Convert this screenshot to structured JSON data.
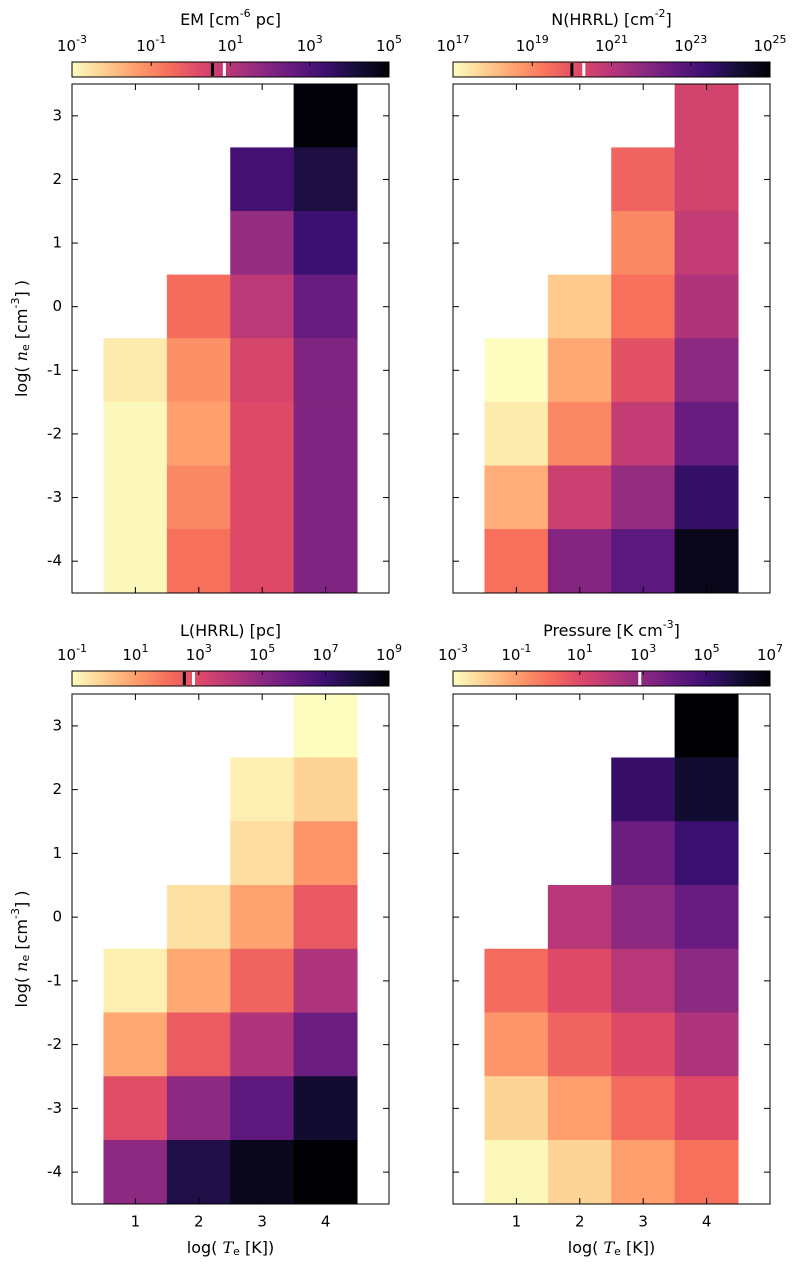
{
  "colormap": [
    "#fcfdbf",
    "#fecf92",
    "#fe9f6d",
    "#f7705c",
    "#de4968",
    "#b73779",
    "#8c2981",
    "#641a80",
    "#3b0f70",
    "#140e36",
    "#000004"
  ],
  "chart_data": [
    {
      "type": "heatmap",
      "title": [
        {
          "text": "EM [cm"
        },
        {
          "sup": "-6"
        },
        {
          "text": " pc]"
        }
      ],
      "x": [
        1,
        2,
        3,
        4
      ],
      "y": [
        3,
        2,
        1,
        0,
        -1,
        -2,
        -3,
        -4
      ],
      "values": [
        [
          null,
          null,
          null,
          83000
        ],
        [
          null,
          null,
          1700,
          11000
        ],
        [
          null,
          null,
          44,
          2500
        ],
        [
          null,
          0.3,
          8,
          330
        ],
        [
          0.0021,
          0.07,
          2.3,
          110
        ],
        [
          0.0012,
          0.04,
          1.6,
          110
        ],
        [
          0.0012,
          0.1,
          1.6,
          110
        ],
        [
          0.0012,
          0.25,
          1.6,
          110
        ]
      ],
      "xlim": [
        0,
        5
      ],
      "ylim": [
        -4.5,
        3.5
      ],
      "xticks": [
        1,
        2,
        3,
        4
      ],
      "yticks": [
        -4,
        -3,
        -2,
        -1,
        0,
        1,
        2,
        3
      ],
      "ylabel": [
        {
          "text": "log( "
        },
        {
          "italic": "n"
        },
        {
          "sub": "e"
        },
        {
          "text": " [cm"
        },
        {
          "sup": "-3"
        },
        {
          "text": "] )"
        }
      ],
      "show_xticklabels": false,
      "show_yticklabels": true,
      "colorbar": {
        "log": true,
        "lim": [
          0.001,
          100000
        ],
        "ticks": [
          {
            "value": 0.001,
            "base": "10",
            "exponent": "-3"
          },
          {
            "value": 0.1,
            "base": "10",
            "exponent": "-1"
          },
          {
            "value": 10,
            "base": "10",
            "exponent": "1"
          },
          {
            "value": 1000,
            "base": "10",
            "exponent": "3"
          },
          {
            "value": 100000,
            "base": "10",
            "exponent": "5"
          }
        ],
        "markers": [
          {
            "value": 3.5,
            "color": "#000000"
          },
          {
            "value": 7,
            "color": "#ffffff"
          }
        ]
      }
    },
    {
      "type": "heatmap",
      "title": [
        {
          "text": "N(HRRL) [cm"
        },
        {
          "sup": "-2"
        },
        {
          "text": "]"
        }
      ],
      "x": [
        1,
        2,
        3,
        4
      ],
      "y": [
        3,
        2,
        1,
        0,
        -1,
        -2,
        -3,
        -4
      ],
      "values": [
        [
          null,
          null,
          null,
          2.8e+20
        ],
        [
          null,
          null,
          4.4e+19,
          2.8e+20
        ],
        [
          null,
          null,
          1e+19,
          5.8e+20
        ],
        [
          null,
          7.6e+17,
          2.5e+19,
          1.4e+21
        ],
        [
          1e+17,
          2.8e+18,
          1.1e+20,
          6.3e+21
        ],
        [
          2.1e+17,
          1e+19,
          5.8e+20,
          3.3e+22
        ],
        [
          2.3e+18,
          4e+20,
          4.4e+21,
          3.6e+23
        ],
        [
          2.5e+19,
          9.1e+21,
          5.8e+22,
          4.8e+24
        ]
      ],
      "xlim": [
        0,
        5
      ],
      "ylim": [
        -4.5,
        3.5
      ],
      "xticks": [
        1,
        2,
        3,
        4
      ],
      "yticks": [
        -4,
        -3,
        -2,
        -1,
        0,
        1,
        2,
        3
      ],
      "show_xticklabels": false,
      "show_yticklabels": false,
      "colorbar": {
        "log": true,
        "lim": [
          1e+17,
          1e+25
        ],
        "ticks": [
          {
            "value": 1e+17,
            "base": "10",
            "exponent": "17"
          },
          {
            "value": 1e+19,
            "base": "10",
            "exponent": "19"
          },
          {
            "value": 1e+21,
            "base": "10",
            "exponent": "21"
          },
          {
            "value": 1e+23,
            "base": "10",
            "exponent": "23"
          },
          {
            "value": 1e+25,
            "base": "10",
            "exponent": "25"
          }
        ],
        "markers": [
          {
            "value": 1e+20,
            "color": "#000000"
          },
          {
            "value": 2e+20,
            "color": "#ffffff"
          }
        ]
      }
    },
    {
      "type": "heatmap",
      "title": [
        {
          "text": "L(HRRL) [pc]"
        }
      ],
      "x": [
        1,
        2,
        3,
        4
      ],
      "y": [
        3,
        2,
        1,
        0,
        -1,
        -2,
        -3,
        -4
      ],
      "values": [
        [
          null,
          null,
          null,
          0.1
        ],
        [
          null,
          null,
          0.2,
          0.8
        ],
        [
          null,
          null,
          0.5,
          16
        ],
        [
          null,
          0.4,
          7.9,
          400
        ],
        [
          0.2,
          6.3,
          200,
          16000
        ],
        [
          6.3,
          320,
          16000,
          630000
        ],
        [
          790,
          100000,
          1600000,
          130000000
        ],
        [
          100000,
          50000000,
          320000000,
          1000000000
        ]
      ],
      "xlim": [
        0,
        5
      ],
      "ylim": [
        -4.5,
        3.5
      ],
      "xticks": [
        1,
        2,
        3,
        4
      ],
      "yticks": [
        -4,
        -3,
        -2,
        -1,
        0,
        1,
        2,
        3
      ],
      "xlabel": [
        {
          "text": "log( "
        },
        {
          "italic": "T"
        },
        {
          "sub": "e"
        },
        {
          "text": " [K])"
        }
      ],
      "ylabel": [
        {
          "text": "log( "
        },
        {
          "italic": "n"
        },
        {
          "sub": "e"
        },
        {
          "text": " [cm"
        },
        {
          "sup": "-3"
        },
        {
          "text": "] )"
        }
      ],
      "show_xticklabels": true,
      "show_yticklabels": true,
      "colorbar": {
        "log": true,
        "lim": [
          0.1,
          1000000000
        ],
        "ticks": [
          {
            "value": 0.1,
            "base": "10",
            "exponent": "-1"
          },
          {
            "value": 10,
            "base": "10",
            "exponent": "1"
          },
          {
            "value": 1000,
            "base": "10",
            "exponent": "3"
          },
          {
            "value": 100000,
            "base": "10",
            "exponent": "5"
          },
          {
            "value": 10000000,
            "base": "10",
            "exponent": "7"
          },
          {
            "value": 1000000000,
            "base": "10",
            "exponent": "9"
          }
        ],
        "markers": [
          {
            "value": 350,
            "color": "#000000"
          },
          {
            "value": 680,
            "color": "#ffffff"
          }
        ]
      }
    },
    {
      "type": "heatmap",
      "title": [
        {
          "text": "Pressure [K cm"
        },
        {
          "sup": "-3"
        },
        {
          "text": "]"
        }
      ],
      "x": [
        1,
        2,
        3,
        4
      ],
      "y": [
        3,
        2,
        1,
        0,
        -1,
        -2,
        -3,
        -4
      ],
      "values": [
        [
          null,
          null,
          null,
          10000000
        ],
        [
          null,
          null,
          130000,
          1300000
        ],
        [
          null,
          null,
          6300,
          100000
        ],
        [
          null,
          100,
          1000,
          7900
        ],
        [
          1.3,
          10,
          100,
          1000
        ],
        [
          0.16,
          2,
          10,
          160
        ],
        [
          0.008,
          0.1,
          1.3,
          10
        ],
        [
          0.0013,
          0.008,
          0.1,
          1
        ]
      ],
      "xlim": [
        0,
        5
      ],
      "ylim": [
        -4.5,
        3.5
      ],
      "xticks": [
        1,
        2,
        3,
        4
      ],
      "yticks": [
        -4,
        -3,
        -2,
        -1,
        0,
        1,
        2,
        3
      ],
      "xlabel": [
        {
          "text": "log( "
        },
        {
          "italic": "T"
        },
        {
          "sub": "e"
        },
        {
          "text": " [K])"
        }
      ],
      "show_xticklabels": true,
      "show_yticklabels": false,
      "colorbar": {
        "log": true,
        "lim": [
          0.001,
          10000000
        ],
        "ticks": [
          {
            "value": 0.001,
            "base": "10",
            "exponent": "-3"
          },
          {
            "value": 0.1,
            "base": "10",
            "exponent": "-1"
          },
          {
            "value": 10,
            "base": "10",
            "exponent": "1"
          },
          {
            "value": 1000,
            "base": "10",
            "exponent": "3"
          },
          {
            "value": 100000,
            "base": "10",
            "exponent": "5"
          },
          {
            "value": 10000000,
            "base": "10",
            "exponent": "7"
          }
        ],
        "markers": [
          {
            "value": 780,
            "color": "#ffffff"
          }
        ]
      }
    }
  ]
}
